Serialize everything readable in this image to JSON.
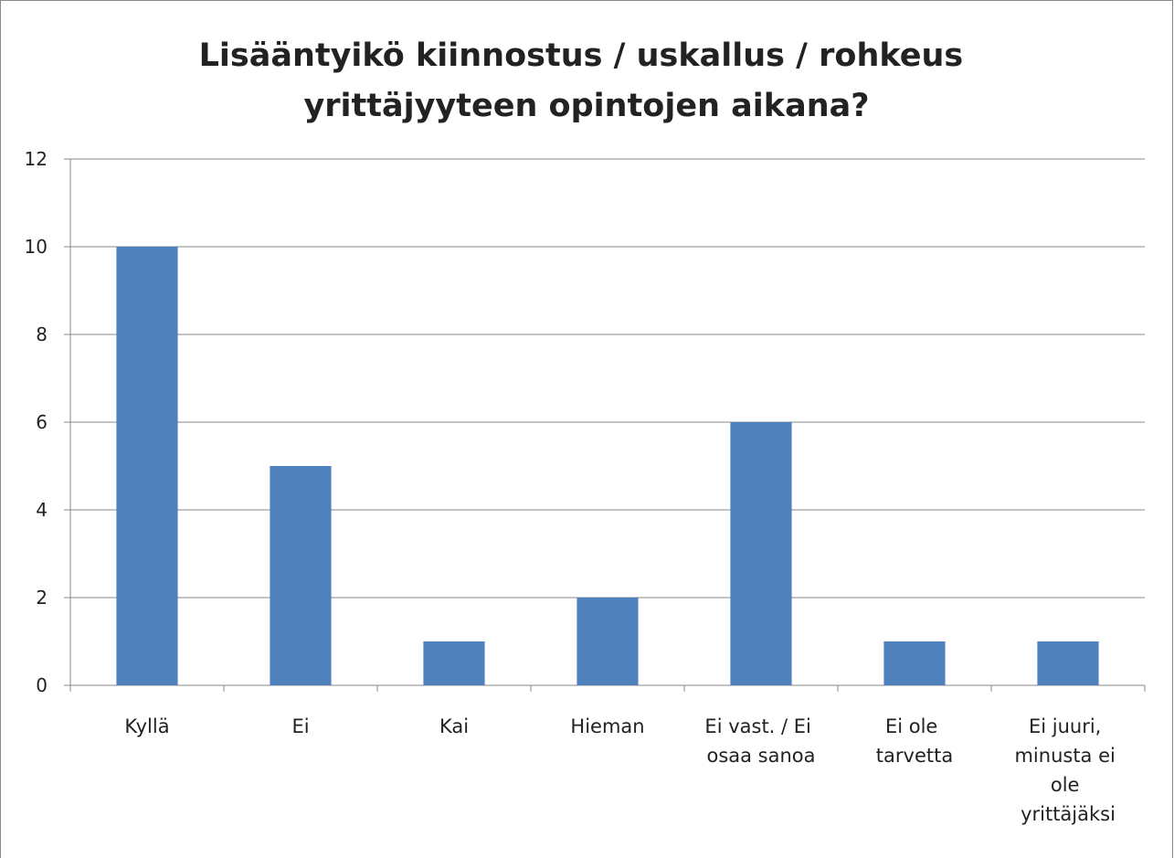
{
  "chart_data": {
    "type": "bar",
    "title": "Lisääntyikö kiinnostus / uskallus / rohkeus yrittäjyyteen opintojen aikana?",
    "categories": [
      "Kyllä",
      "Ei",
      "Kai",
      "Hieman",
      "Ei vast. / Ei osaa sanoa",
      "Ei ole tarvetta",
      "Ei juuri, minusta ei ole yrittäjäksi"
    ],
    "values": [
      10,
      5,
      1,
      2,
      6,
      1,
      1
    ],
    "color": "#4f81bd",
    "ylim": [
      0,
      12
    ],
    "yticks": [
      0,
      2,
      4,
      6,
      8,
      10,
      12
    ],
    "grid": true
  }
}
